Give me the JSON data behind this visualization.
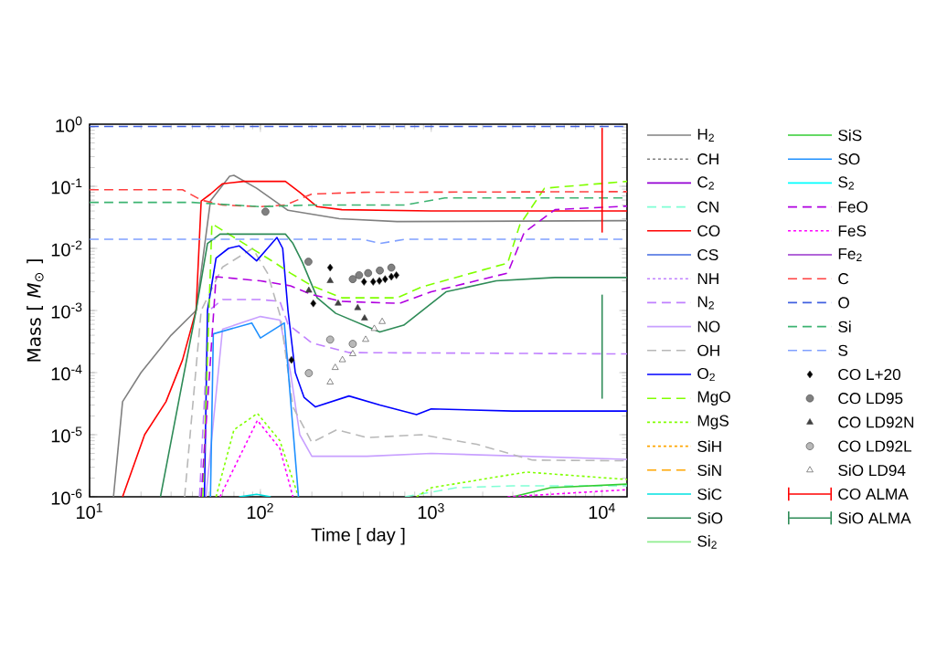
{
  "chart_data": {
    "type": "line",
    "xlabel": "Time  [ day ]",
    "ylabel": "Mass  [ *M*$_{⊙}$ ]",
    "log": "xy",
    "legend": "right",
    "xlim": [
      10,
      14000
    ],
    "ylim": [
      1e-06,
      1
    ],
    "xticks": [
      {
        "value": 10,
        "label": "10$^{1}$"
      },
      {
        "value": 100,
        "label": "10$^{2}$"
      },
      {
        "value": 1000,
        "label": "10$^{3}$"
      },
      {
        "value": 10000,
        "label": "10$^{4}$"
      }
    ],
    "yticks": [
      {
        "value": 1e-06,
        "label": "10$^{-6}$"
      },
      {
        "value": 1e-05,
        "label": "10$^{-5}$"
      },
      {
        "value": 0.0001,
        "label": "10$^{-4}$"
      },
      {
        "value": 0.001,
        "label": "10$^{-3}$"
      },
      {
        "value": 0.01,
        "label": "10$^{-2}$"
      },
      {
        "value": 0.1,
        "label": "10$^{-1}$"
      },
      {
        "value": 1,
        "label": "10$^{0}$"
      }
    ],
    "series": [
      {
        "name": "H$_{2}$",
        "color": "#808080",
        "line_style": "solid",
        "x": [
          13.8,
          15.6,
          20,
          30,
          42,
          51,
          66,
          70,
          95,
          145,
          290,
          630,
          14000
        ],
        "values": [
          1e-06,
          3.4e-05,
          0.0001,
          0.0004,
          0.001,
          0.058,
          0.145,
          0.15,
          0.093,
          0.041,
          0.03,
          0.027,
          0.028
        ]
      },
      {
        "name": "CH",
        "color": "#808080",
        "line_style": "dotted"
      },
      {
        "name": "C$_{2}$",
        "color": "#9400d3",
        "line_style": "solid"
      },
      {
        "name": "CN",
        "color": "#7fffd4",
        "line_style": "dashed",
        "x": [
          700,
          1400,
          3000,
          14000
        ],
        "values": [
          1e-06,
          1.4e-06,
          1.5e-06,
          1.5e-06
        ]
      },
      {
        "name": "CO",
        "color": "#ff0000",
        "line_style": "solid",
        "x": [
          15.6,
          21,
          28,
          35,
          42,
          45,
          51,
          60,
          80,
          140,
          170,
          215,
          300,
          1000,
          14000
        ],
        "values": [
          1e-06,
          1e-05,
          3.4e-05,
          0.00016,
          0.001,
          0.058,
          0.075,
          0.11,
          0.12,
          0.12,
          0.08,
          0.047,
          0.042,
          0.04,
          0.04
        ]
      },
      {
        "name": "CS",
        "color": "#4169e1",
        "line_style": "solid"
      },
      {
        "name": "NH",
        "color": "#c080ff",
        "line_style": "dotted"
      },
      {
        "name": "N$_{2}$",
        "color": "#c080ff",
        "line_style": "dashed",
        "x": [
          44,
          50,
          60,
          100,
          130,
          145,
          200,
          330,
          14000
        ],
        "values": [
          1e-06,
          0.001,
          0.0015,
          0.0015,
          0.0014,
          0.0006,
          0.0003,
          0.00021,
          0.0002
        ]
      },
      {
        "name": "NO",
        "color": "#c8a0ff",
        "line_style": "solid",
        "x": [
          48,
          60,
          100,
          130,
          150,
          170,
          200,
          420,
          1000,
          14000
        ],
        "values": [
          1e-06,
          0.0005,
          0.0008,
          0.0007,
          0.0001,
          1e-05,
          4.5e-06,
          4.5e-06,
          5e-06,
          4e-06
        ]
      },
      {
        "name": "OH",
        "color": "#b8b8b8",
        "line_style": "dashed",
        "x": [
          36,
          45,
          60,
          90,
          110,
          131,
          155,
          200,
          280,
          420,
          880,
          1850,
          3900,
          14000
        ],
        "values": [
          1e-06,
          0.001,
          0.005,
          0.01,
          0.004,
          0.0008,
          2.8e-05,
          7.5e-06,
          1.2e-05,
          9e-06,
          1e-05,
          7e-06,
          3.9e-06,
          3.8e-06
        ]
      },
      {
        "name": "O$_{2}$",
        "color": "#0000ff",
        "line_style": "solid",
        "x": [
          47,
          49,
          55,
          65,
          75,
          95,
          110,
          125,
          135,
          145,
          160,
          180,
          210,
          330,
          500,
          820,
          1000,
          3000,
          14000
        ],
        "values": [
          1e-06,
          0.001,
          0.007,
          0.01,
          0.011,
          0.0063,
          0.01,
          0.015,
          0.01,
          0.001,
          0.0001,
          4e-05,
          2.8e-05,
          4.2e-05,
          3e-05,
          2.1e-05,
          2.6e-05,
          2.4e-05,
          2.4e-05
        ]
      },
      {
        "name": "MgO",
        "color": "#80ff00",
        "line_style": "dashed",
        "x": [
          46,
          52,
          80,
          120,
          150,
          200,
          300,
          630,
          880,
          2800,
          3300,
          4600,
          14000
        ],
        "values": [
          1e-06,
          0.025,
          0.012,
          0.006,
          0.004,
          0.0025,
          0.0016,
          0.0016,
          0.0024,
          0.0058,
          0.024,
          0.093,
          0.12
        ]
      },
      {
        "name": "MgS",
        "color": "#80ff00",
        "line_style": "dotted",
        "x": [
          55,
          70,
          96,
          130,
          167,
          400,
          820,
          1000,
          3600,
          14000
        ],
        "values": [
          1e-06,
          1.2e-05,
          2.2e-05,
          8e-06,
          1e-06,
          null,
          1e-06,
          1.4e-06,
          2.5e-06,
          1.9e-06
        ]
      },
      {
        "name": "SiH",
        "color": "#ffa500",
        "line_style": "dotted"
      },
      {
        "name": "SiN",
        "color": "#ffa500",
        "line_style": "dashed"
      },
      {
        "name": "SiC",
        "color": "#00e0e0",
        "line_style": "solid",
        "x": [
          75,
          95,
          115
        ],
        "values": [
          1e-06,
          1.1e-06,
          1e-06
        ]
      },
      {
        "name": "SiO",
        "color": "#2e8b57",
        "line_style": "solid",
        "x": [
          26,
          42,
          49,
          58,
          140,
          155,
          176,
          215,
          276,
          500,
          690,
          1220,
          2400,
          5300,
          14000
        ],
        "values": [
          1e-06,
          0.001,
          0.012,
          0.017,
          0.017,
          0.012,
          0.006,
          0.0016,
          0.0009,
          0.00045,
          0.00058,
          0.002,
          0.003,
          0.0034,
          0.0034
        ]
      },
      {
        "name": "Si$_{2}$",
        "color": "#90ee90",
        "line_style": "solid"
      },
      {
        "name": "SiS",
        "color": "#32cd32",
        "line_style": "solid",
        "x": [
          3000,
          5000,
          14000
        ],
        "values": [
          1e-06,
          1.4e-06,
          1.6e-06
        ]
      },
      {
        "name": "SO",
        "color": "#1e90ff",
        "line_style": "solid",
        "x": [
          51,
          53,
          89,
          100,
          138,
          167
        ],
        "values": [
          1e-06,
          0.00042,
          0.00063,
          0.00036,
          0.00063,
          1e-06
        ]
      },
      {
        "name": "S$_{2}$",
        "color": "#00ffff",
        "line_style": "solid"
      },
      {
        "name": "FeO",
        "color": "#b000e0",
        "line_style": "dashed",
        "x": [
          45,
          55,
          100,
          150,
          200,
          300,
          650,
          1000,
          2800,
          3500,
          5300,
          14000
        ],
        "values": [
          1e-06,
          0.0035,
          0.003,
          0.0025,
          0.0018,
          0.0014,
          0.0013,
          0.002,
          0.004,
          0.018,
          0.042,
          0.048
        ]
      },
      {
        "name": "FeS",
        "color": "#ff00ff",
        "line_style": "dotted",
        "x": [
          58,
          96,
          130,
          155,
          400,
          2800,
          14000
        ],
        "values": [
          1e-06,
          1.7e-05,
          6e-06,
          1e-06,
          null,
          1e-06,
          1.3e-06
        ]
      },
      {
        "name": "Fe$_{2}$",
        "color": "#9932cc",
        "line_style": "solid"
      },
      {
        "name": "C",
        "color": "#ff4040",
        "line_style": "dashed",
        "x": [
          10,
          35,
          45,
          60,
          100,
          140,
          200,
          400,
          14000
        ],
        "values": [
          0.088,
          0.088,
          0.06,
          0.05,
          0.047,
          0.05,
          0.075,
          0.08,
          0.082
        ]
      },
      {
        "name": "O",
        "color": "#4060e0",
        "line_style": "dashed",
        "x": [
          10,
          14000
        ],
        "values": [
          0.92,
          0.92
        ]
      },
      {
        "name": "Si",
        "color": "#3cb371",
        "line_style": "dashed",
        "x": [
          10,
          40,
          100,
          200,
          700,
          1200,
          14000
        ],
        "values": [
          0.055,
          0.055,
          0.047,
          0.05,
          0.05,
          0.065,
          0.065
        ]
      },
      {
        "name": "S",
        "color": "#80a0ff",
        "line_style": "dashed",
        "x": [
          10,
          400,
          500,
          700,
          14000
        ],
        "values": [
          0.014,
          0.014,
          0.012,
          0.014,
          0.014
        ]
      },
      {
        "name": "CO L+20",
        "type": "scatter",
        "marker": "diamond",
        "color": "#000000",
        "x": [
          152,
          204,
          256,
          404,
          457,
          497,
          537,
          584,
          625
        ],
        "values": [
          0.00016,
          0.0013,
          0.0049,
          0.0029,
          0.0029,
          0.003,
          0.0032,
          0.0035,
          0.0037
        ]
      },
      {
        "name": "CO LD95",
        "type": "scatter",
        "marker": "circle",
        "color": "#808080",
        "x": [
          107,
          191,
          347,
          378,
          427,
          500,
          584
        ],
        "values": [
          0.039,
          0.0061,
          0.0032,
          0.0037,
          0.004,
          0.0044,
          0.0049
        ]
      },
      {
        "name": "CO LD92N",
        "type": "scatter",
        "marker": "triangle",
        "color": "#404040",
        "x": [
          192,
          256,
          285,
          371,
          407
        ],
        "values": [
          0.0021,
          0.003,
          0.0013,
          0.0011,
          0.00075
        ]
      },
      {
        "name": "CO LD92L",
        "type": "scatter",
        "marker": "circle",
        "color": "#b8b8b8",
        "x": [
          192,
          256,
          347
        ],
        "values": [
          9.8e-05,
          0.00034,
          0.00029
        ]
      },
      {
        "name": "SiO LD94",
        "type": "scatter",
        "marker": "triangle",
        "color": "#ffffff",
        "x": [
          256,
          274,
          302,
          347,
          413,
          464,
          516
        ],
        "values": [
          7e-05,
          0.00012,
          0.00016,
          0.0002,
          0.00034,
          0.00051,
          0.00066
        ]
      },
      {
        "name": "CO ALMA",
        "color": "#ff0000",
        "line_style": "solid",
        "x": [
          10000,
          10000
        ],
        "values": [
          0.018,
          0.87
        ]
      },
      {
        "name": "SiO ALMA",
        "color": "#2e8b57",
        "line_style": "solid",
        "x": [
          10000,
          10000
        ],
        "values": [
          3.8e-05,
          0.0018
        ]
      }
    ]
  }
}
